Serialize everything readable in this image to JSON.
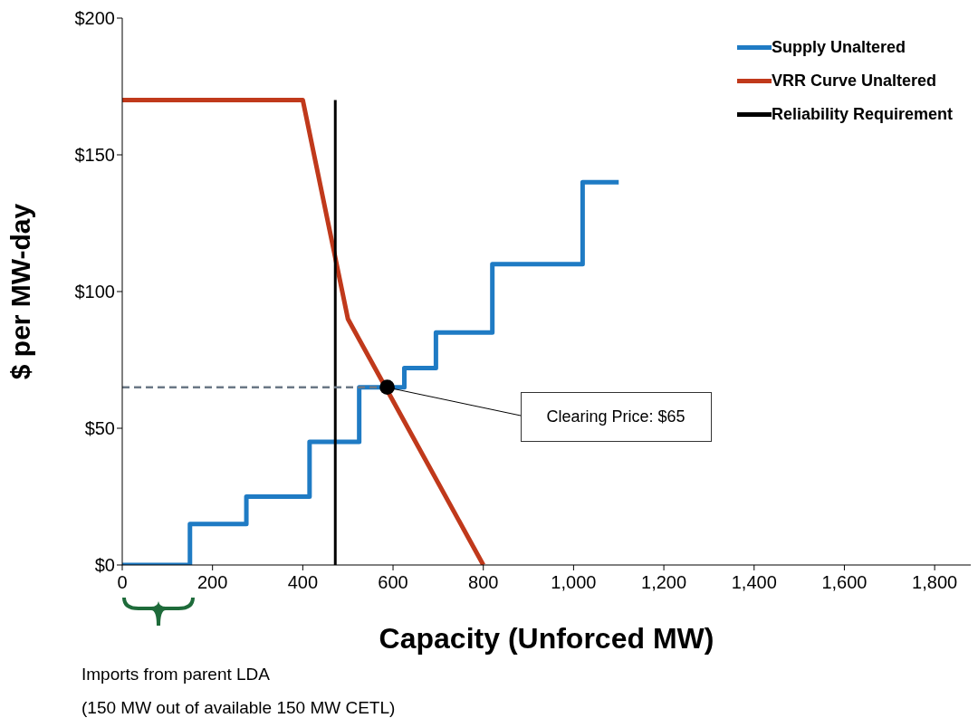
{
  "chart_data": {
    "type": "line",
    "xlabel": "Capacity (Unforced MW)",
    "ylabel": "$ per MW-day",
    "xlim": [
      0,
      1880
    ],
    "xticks": [
      0,
      200,
      400,
      600,
      800,
      {
        "value": 1000,
        "label": "1,000"
      },
      {
        "value": 1200,
        "label": "1,200"
      },
      {
        "value": 1400,
        "label": "1,400"
      },
      {
        "value": 1600,
        "label": "1,600"
      },
      {
        "value": 1800,
        "label": "1,800"
      }
    ],
    "ylim": [
      0,
      200
    ],
    "yticks": [
      {
        "value": 0,
        "label": "$0"
      },
      {
        "value": 50,
        "label": "$50"
      },
      {
        "value": 100,
        "label": "$100"
      },
      {
        "value": 150,
        "label": "$150"
      },
      {
        "value": 200,
        "label": "$200"
      }
    ],
    "grid": false,
    "legend": "top right",
    "series": [
      {
        "name": "Supply Unaltered",
        "type": "step",
        "color": "#1f7bc4",
        "x": [
          0,
          150,
          275,
          415,
          525,
          625,
          695,
          820,
          1020,
          1100
        ],
        "values": [
          0,
          15,
          25,
          45,
          65,
          72,
          85,
          110,
          140,
          140
        ]
      },
      {
        "name": "VRR Curve Unaltered",
        "color": "#c0391b",
        "x": [
          0,
          400,
          500,
          800
        ],
        "values": [
          170,
          170,
          90,
          0
        ]
      },
      {
        "name": "Reliability Requirement",
        "color": "#000000",
        "x": [
          472,
          472
        ],
        "values": [
          0,
          170
        ]
      },
      {
        "color": "#6b7886",
        "line_style": "dashed",
        "x": [
          0,
          587
        ],
        "values": [
          65,
          65
        ]
      },
      {
        "type": "scatter",
        "color": "#000000",
        "marker": "circle",
        "x": [
          587
        ],
        "values": [
          65
        ]
      }
    ],
    "annotations": [
      "Clearing Price: $65",
      "Imports from parent LDA\n(150 MW out of available 150 MW CETL)"
    ]
  }
}
